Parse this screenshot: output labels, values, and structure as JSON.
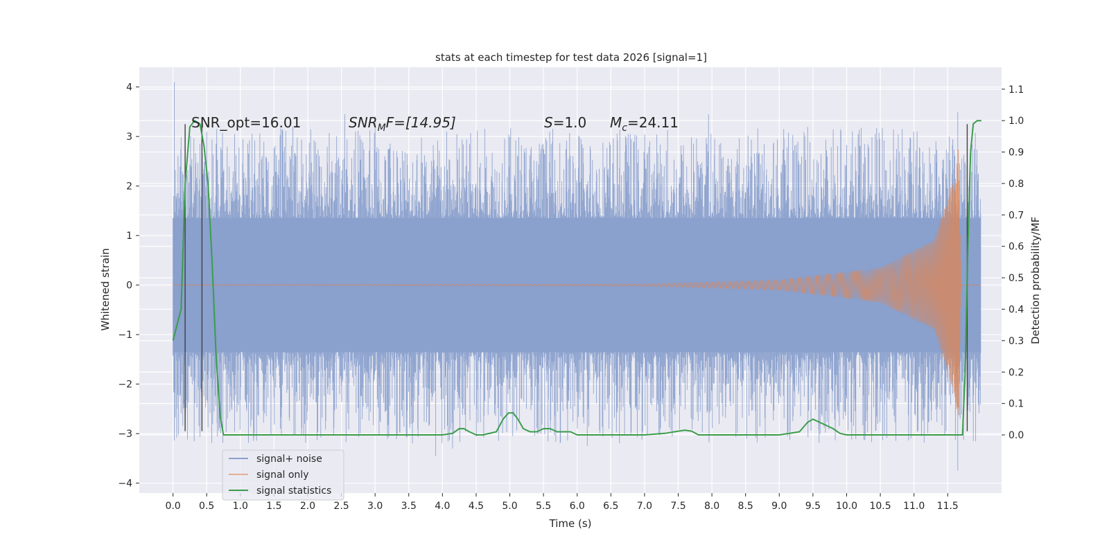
{
  "chart_data": {
    "type": "line",
    "title": "stats at each timestep for test data 2026 [signal=1]",
    "xlabel": "Time (s)",
    "ylabel": "Whitened strain",
    "ylabel_right": "Detection probability/MF",
    "xlim": [
      -0.5,
      12.3
    ],
    "ylim": [
      -4.2,
      4.4
    ],
    "ylim_right": [
      -0.185,
      1.17
    ],
    "x_ticks": [
      0.0,
      0.5,
      1.0,
      1.5,
      2.0,
      2.5,
      3.0,
      3.5,
      4.0,
      4.5,
      5.0,
      5.5,
      6.0,
      6.5,
      7.0,
      7.5,
      8.0,
      8.5,
      9.0,
      9.5,
      10.0,
      10.5,
      11.0,
      11.5
    ],
    "x_tick_labels": [
      "0.0",
      "0.5",
      "1.0",
      "1.5",
      "2.0",
      "2.5",
      "3.0",
      "3.5",
      "4.0",
      "4.5",
      "5.0",
      "5.5",
      "6.0",
      "6.5",
      "7.0",
      "7.5",
      "8.0",
      "8.5",
      "9.0",
      "9.5",
      "10.0",
      "10.5",
      "11.0",
      "11.5"
    ],
    "y_ticks": [
      -4,
      -3,
      -2,
      -1,
      0,
      1,
      2,
      3,
      4
    ],
    "y_tick_labels": [
      "−4",
      "−3",
      "−2",
      "−1",
      "0",
      "1",
      "2",
      "3",
      "4"
    ],
    "y_right_ticks": [
      0.0,
      0.1,
      0.2,
      0.3,
      0.4,
      0.5,
      0.6,
      0.7,
      0.8,
      0.9,
      1.0,
      1.1
    ],
    "y_right_tick_labels": [
      "0.0",
      "0.1",
      "0.2",
      "0.3",
      "0.4",
      "0.5",
      "0.6",
      "0.7",
      "0.8",
      "0.9",
      "1.0",
      "1.1"
    ],
    "grid": true,
    "legend_placement": "lower-left",
    "legend": [
      "signal+ noise",
      "signal only",
      "signal statistics"
    ],
    "annotations": {
      "snr_opt": "SNR_opt=16.01",
      "snr_mf_name": "SNR",
      "snr_mf_sub": "M",
      "snr_mf_tail": "F=[14.95]",
      "s_name": "S",
      "s_tail": "=1.0",
      "mc_name": "M",
      "mc_sub": "c",
      "mc_tail": "=24.11"
    },
    "series": [
      {
        "name": "signal+ noise",
        "color": "#8aa0cc",
        "x_range": [
          0.0,
          11.99
        ],
        "envelope": {
          "core": 1.35,
          "typical_peak": 2.3,
          "max": 4.1,
          "min": -3.8
        },
        "notable_spikes": [
          {
            "x": 0.02,
            "y": 4.1
          },
          {
            "x": 2.55,
            "y": 3.45
          },
          {
            "x": 3.0,
            "y": 3.4
          },
          {
            "x": 7.95,
            "y": 3.45
          },
          {
            "x": 11.65,
            "y": 3.5
          },
          {
            "x": 11.65,
            "y": -3.75
          },
          {
            "x": 3.9,
            "y": -3.45
          },
          {
            "x": 4.15,
            "y": -3.3
          },
          {
            "x": 6.15,
            "y": -3.25
          }
        ]
      },
      {
        "name": "signal only",
        "color": "#dd8452",
        "description_points": [
          {
            "x": 0.0,
            "amp": 0.0
          },
          {
            "x": 7.0,
            "amp": 0.02
          },
          {
            "x": 9.0,
            "amp": 0.1
          },
          {
            "x": 10.5,
            "amp": 0.35
          },
          {
            "x": 11.3,
            "amp": 0.9
          },
          {
            "x": 11.6,
            "amp": 2.2
          },
          {
            "x": 11.66,
            "amp": 2.8
          },
          {
            "x": 11.7,
            "amp": 0.0
          }
        ]
      },
      {
        "name": "signal statistics",
        "color": "#3a9d4a",
        "axis": "right",
        "x": [
          0.0,
          0.06,
          0.12,
          0.18,
          0.25,
          0.32,
          0.4,
          0.46,
          0.52,
          0.58,
          0.64,
          0.7,
          0.75,
          1.0,
          2.0,
          3.0,
          4.0,
          4.15,
          4.25,
          4.32,
          4.4,
          4.5,
          4.6,
          4.8,
          4.9,
          4.98,
          5.05,
          5.12,
          5.2,
          5.3,
          5.4,
          5.5,
          5.6,
          5.7,
          5.8,
          5.9,
          6.0,
          6.2,
          7.0,
          7.3,
          7.5,
          7.6,
          7.7,
          7.8,
          8.0,
          9.0,
          9.3,
          9.42,
          9.5,
          9.6,
          9.7,
          9.8,
          9.9,
          10.0,
          11.0,
          11.5,
          11.64,
          11.72,
          11.76,
          11.8,
          11.84,
          11.88,
          11.94,
          12.0
        ],
        "y": [
          0.3,
          0.35,
          0.4,
          0.8,
          0.98,
          1.0,
          0.99,
          0.92,
          0.8,
          0.55,
          0.25,
          0.06,
          0.0,
          0.0,
          0.0,
          0.0,
          0.0,
          0.005,
          0.02,
          0.02,
          0.01,
          0.0,
          0.0,
          0.01,
          0.05,
          0.07,
          0.07,
          0.05,
          0.02,
          0.01,
          0.01,
          0.02,
          0.02,
          0.01,
          0.01,
          0.01,
          0.0,
          0.0,
          0.0,
          0.005,
          0.012,
          0.015,
          0.012,
          0.0,
          0.0,
          0.0,
          0.01,
          0.04,
          0.05,
          0.04,
          0.03,
          0.02,
          0.005,
          0.0,
          0.0,
          0.0,
          0.0,
          0.0,
          0.2,
          0.6,
          0.9,
          0.99,
          1.0,
          1.0
        ]
      }
    ],
    "vertical_markers": [
      {
        "x": 0.18,
        "ymin": -2.95,
        "ymax": 3.25
      },
      {
        "x": 0.43,
        "ymin": -2.95,
        "ymax": 3.25
      },
      {
        "x": 11.79,
        "ymin": -2.95,
        "ymax": 3.25
      }
    ]
  }
}
